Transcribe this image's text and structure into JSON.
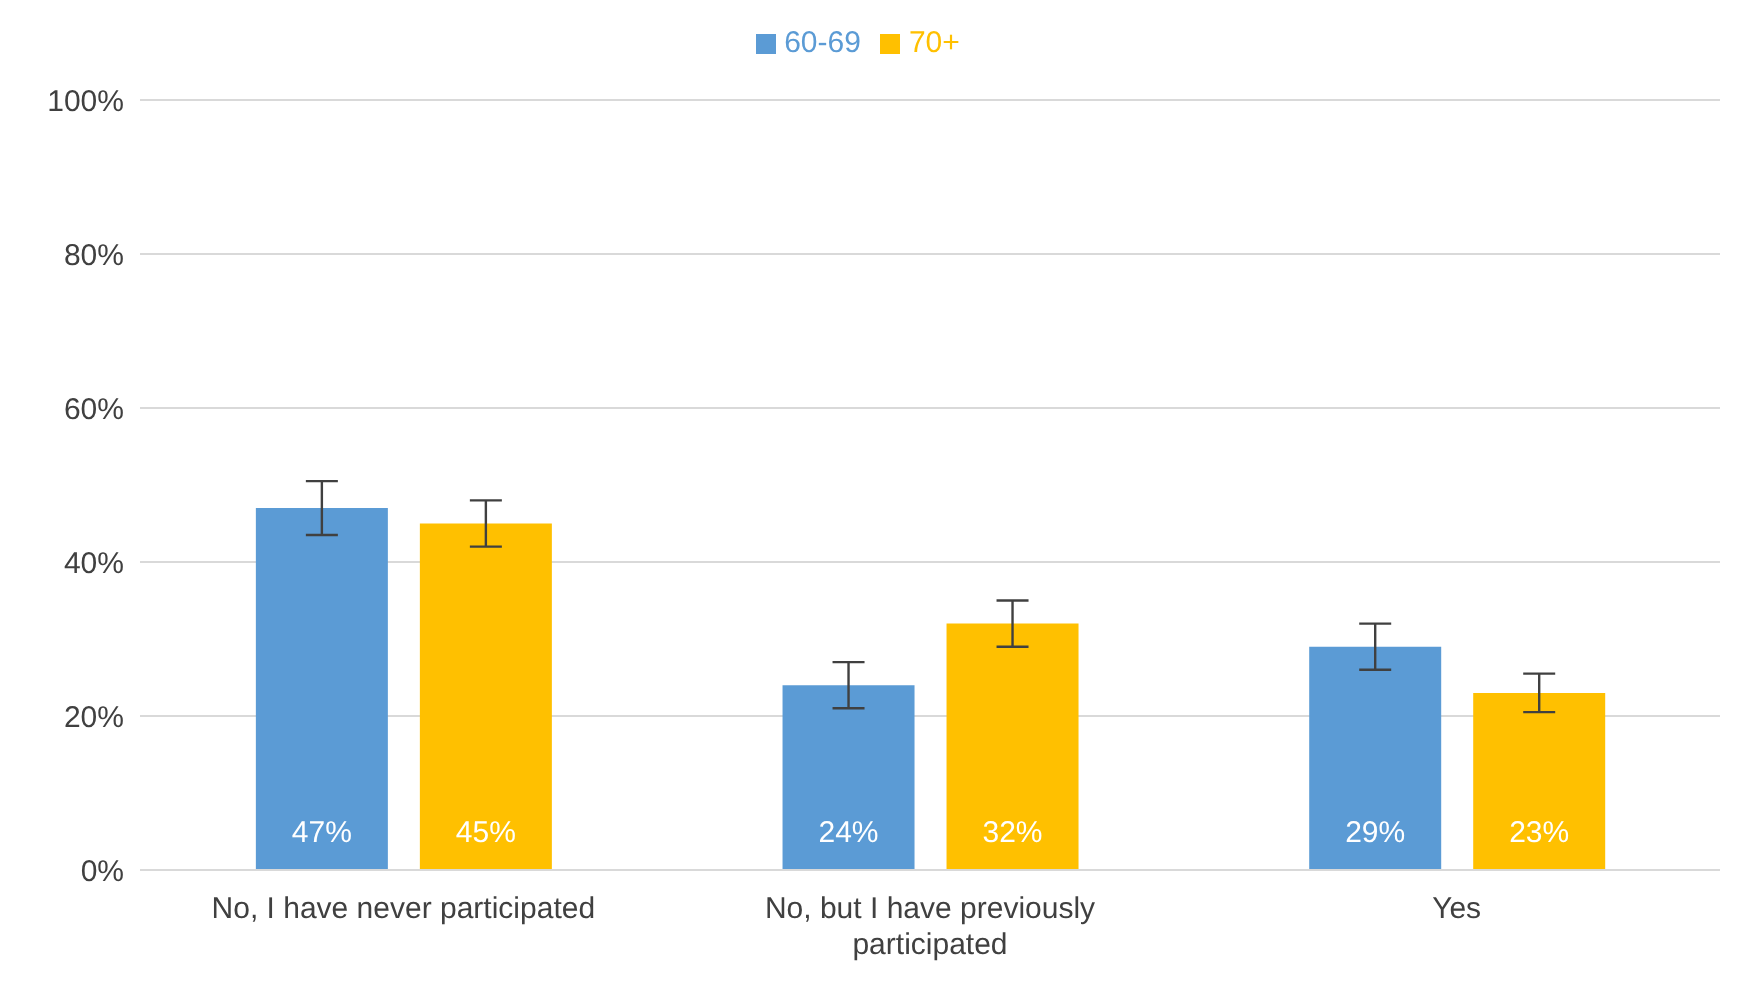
{
  "chart_data": {
    "type": "bar",
    "categories": [
      "No, I have never participated",
      "No, but I have previously participated",
      "Yes"
    ],
    "series": [
      {
        "name": "60-69",
        "color": "#5b9bd5",
        "values": [
          47,
          24,
          29
        ],
        "errors": [
          3.5,
          3,
          3
        ],
        "value_labels": [
          "47%",
          "24%",
          "29%"
        ]
      },
      {
        "name": "70+",
        "color": "#ffc000",
        "values": [
          45,
          32,
          23
        ],
        "errors": [
          3,
          3,
          2.5
        ],
        "value_labels": [
          "45%",
          "32%",
          "23%"
        ]
      }
    ],
    "ylim": [
      0,
      100
    ],
    "yticks": [
      {
        "value": 0,
        "label": "0%"
      },
      {
        "value": 20,
        "label": "20%"
      },
      {
        "value": 40,
        "label": "40%"
      },
      {
        "value": 60,
        "label": "60%"
      },
      {
        "value": 80,
        "label": "80%"
      },
      {
        "value": 100,
        "label": "100%"
      }
    ],
    "grid": "y",
    "legend": "top"
  }
}
